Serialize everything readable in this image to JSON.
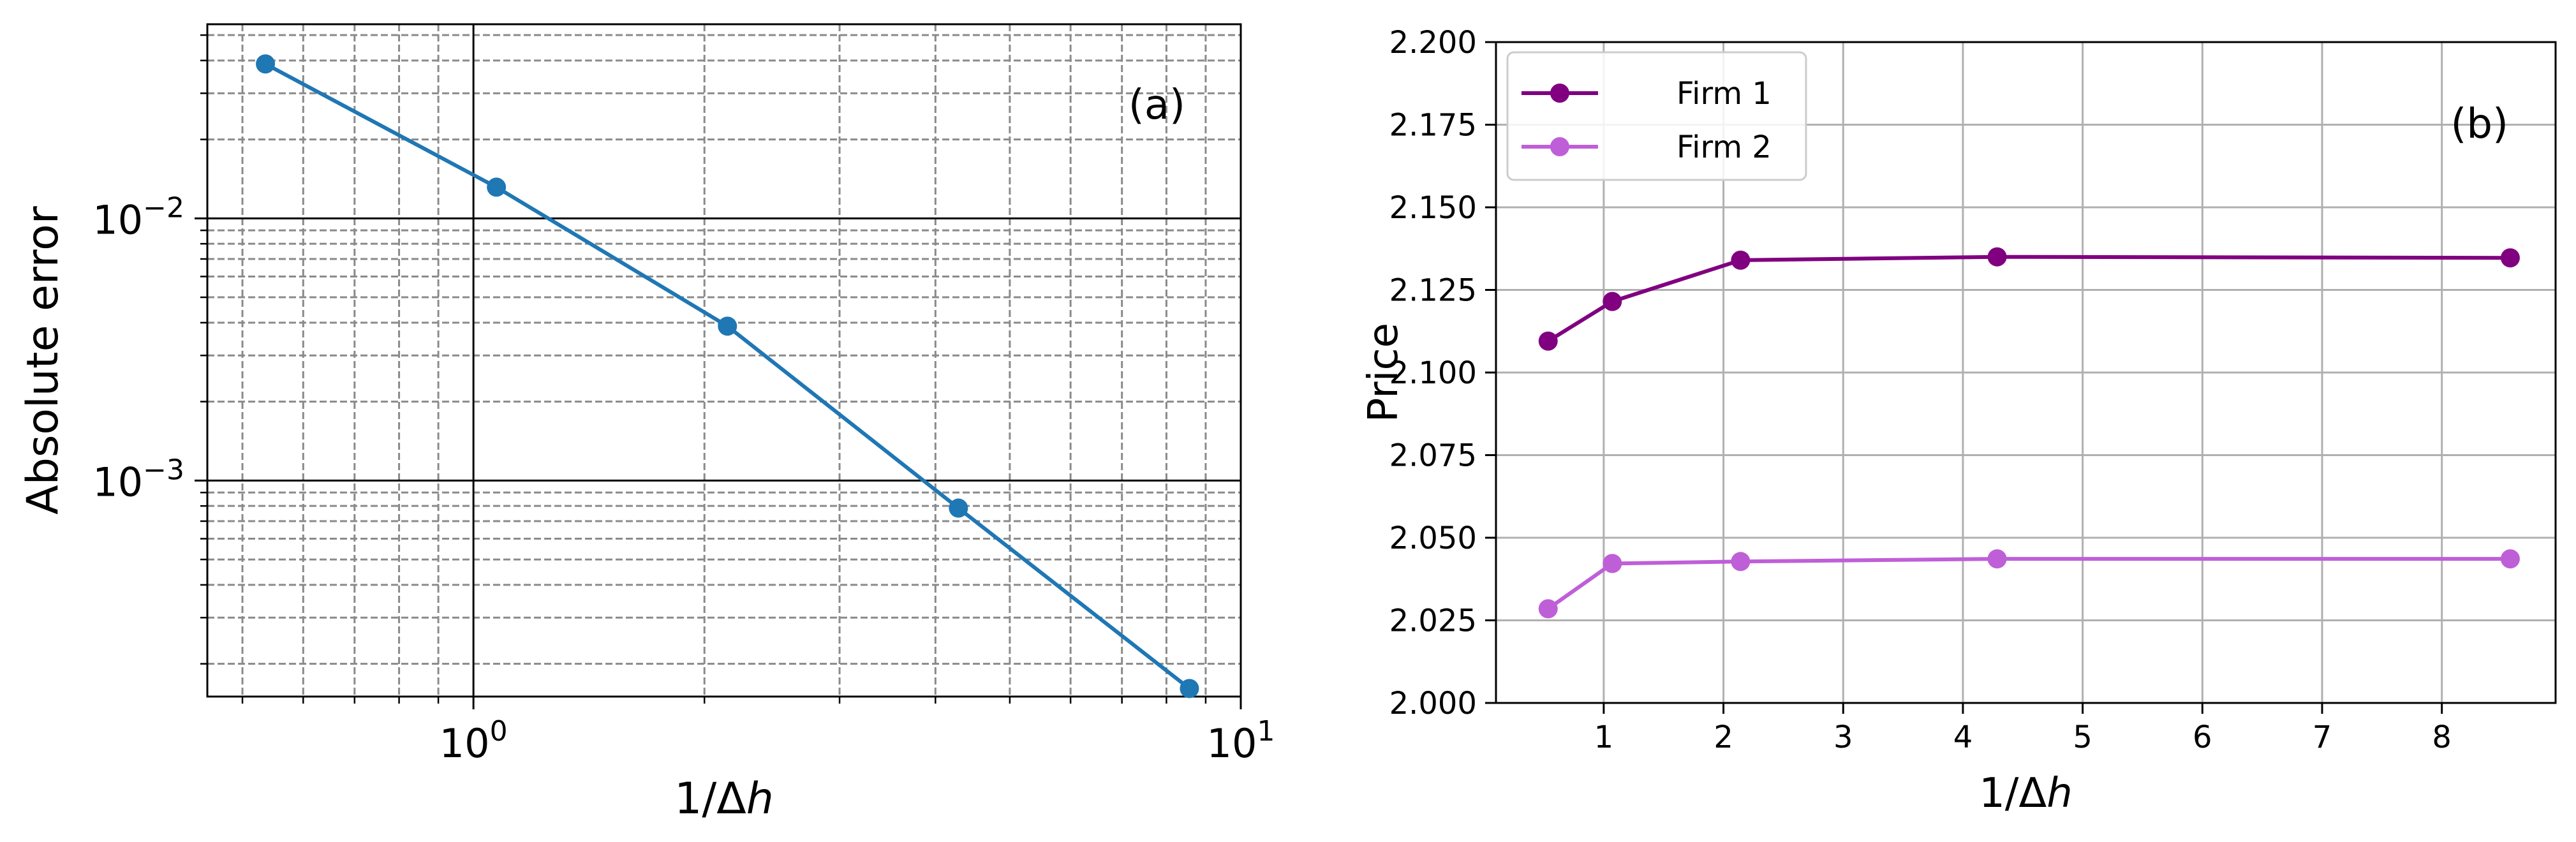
{
  "chart_data": [
    {
      "type": "line",
      "panel_label": "(a)",
      "xlabel_main": "1/Δ",
      "xlabel_italic": "h",
      "ylabel": "Absolute error",
      "x_scale": "log",
      "y_scale": "log",
      "xlim": [
        0.45,
        10
      ],
      "ylim": [
        0.00015,
        0.055
      ],
      "x_ticks": [
        {
          "value": 1,
          "base": "10",
          "exp": "0"
        },
        {
          "value": 10,
          "base": "10",
          "exp": "1"
        }
      ],
      "y_ticks": [
        {
          "value": 0.01,
          "base": "10",
          "exp": "−2"
        },
        {
          "value": 0.001,
          "base": "10",
          "exp": "−3"
        }
      ],
      "grid": "major and minor",
      "color": "#1f77b4",
      "series": [
        {
          "x": [
            0.5357,
            1.0714,
            2.1429,
            4.2857,
            8.5714
          ],
          "y": [
            0.0388,
            0.01315,
            0.00388,
            0.000785,
            0.000161
          ]
        }
      ]
    },
    {
      "type": "line",
      "panel_label": "(b)",
      "xlabel_main": "1/Δ",
      "xlabel_italic": "h",
      "ylabel": "Price",
      "xlim": [
        0.1,
        8.95
      ],
      "ylim": [
        2.0,
        2.2
      ],
      "x_ticks": [
        "1",
        "2",
        "3",
        "4",
        "5",
        "6",
        "7",
        "8"
      ],
      "y_ticks": [
        "2.000",
        "2.025",
        "2.050",
        "2.075",
        "2.100",
        "2.125",
        "2.150",
        "2.175",
        "2.200"
      ],
      "grid": "on",
      "legend_position": "top-left",
      "series": [
        {
          "name": "Firm 1",
          "color": "#800080",
          "x": [
            0.5357,
            1.0714,
            2.1429,
            4.2857,
            8.5714
          ],
          "y": [
            2.1095,
            2.1215,
            2.134,
            2.135,
            2.1347
          ]
        },
        {
          "name": "Firm 2",
          "color": "#bf5fd8",
          "x": [
            0.5357,
            1.0714,
            2.1429,
            4.2857,
            8.5714
          ],
          "y": [
            2.0285,
            2.0422,
            2.0428,
            2.0436,
            2.0436
          ]
        }
      ]
    }
  ]
}
